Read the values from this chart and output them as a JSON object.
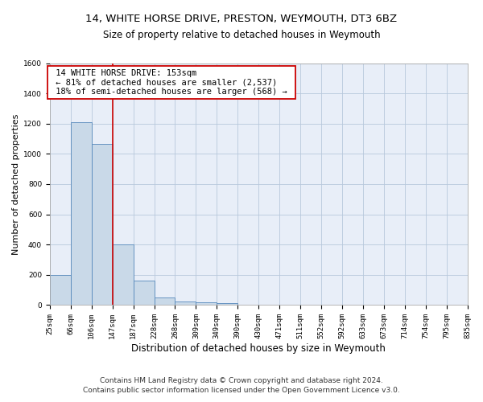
{
  "title": "14, WHITE HORSE DRIVE, PRESTON, WEYMOUTH, DT3 6BZ",
  "subtitle": "Size of property relative to detached houses in Weymouth",
  "xlabel": "Distribution of detached houses by size in Weymouth",
  "ylabel": "Number of detached properties",
  "footnote1": "Contains HM Land Registry data © Crown copyright and database right 2024.",
  "footnote2": "Contains public sector information licensed under the Open Government Licence v3.0.",
  "annotation_line1": "14 WHITE HORSE DRIVE: 153sqm",
  "annotation_line2": "← 81% of detached houses are smaller (2,537)",
  "annotation_line3": "18% of semi-detached houses are larger (568) →",
  "bar_values": [
    200,
    1210,
    1065,
    400,
    160,
    50,
    25,
    20,
    15,
    0,
    0,
    0,
    0,
    0,
    0,
    0,
    0,
    0,
    0,
    0
  ],
  "x_labels": [
    "25sqm",
    "66sqm",
    "106sqm",
    "147sqm",
    "187sqm",
    "228sqm",
    "268sqm",
    "309sqm",
    "349sqm",
    "390sqm",
    "430sqm",
    "471sqm",
    "511sqm",
    "552sqm",
    "592sqm",
    "633sqm",
    "673sqm",
    "714sqm",
    "754sqm",
    "795sqm",
    "835sqm"
  ],
  "bar_color": "#c9d9e8",
  "bar_edge_color": "#5588bb",
  "grid_color": "#b8c8dc",
  "background_color": "#e8eef8",
  "red_line_x": 3,
  "ylim": [
    0,
    1600
  ],
  "yticks": [
    0,
    200,
    400,
    600,
    800,
    1000,
    1200,
    1400,
    1600
  ],
  "red_line_color": "#cc0000",
  "title_fontsize": 9.5,
  "subtitle_fontsize": 8.5,
  "ylabel_fontsize": 8,
  "xlabel_fontsize": 8.5,
  "tick_fontsize": 6.5,
  "annotation_fontsize": 7.5,
  "footnote_fontsize": 6.5
}
